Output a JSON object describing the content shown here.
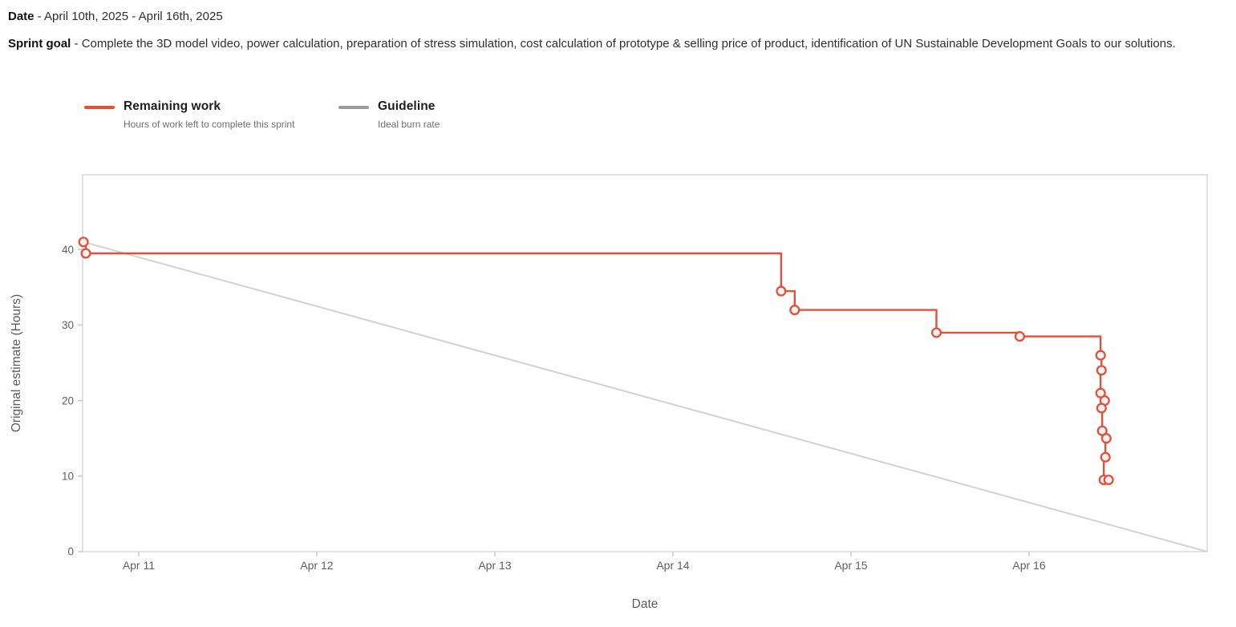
{
  "page": {
    "date_label": "Date",
    "date_sep": " - ",
    "date_value": "April 10th, 2025 - April 16th, 2025",
    "sprint_goal_label": "Sprint goal",
    "sprint_goal_sep": " - ",
    "sprint_goal_text": "Complete the 3D model video, power calculation, preparation of stress simulation, cost calculation of prototype & selling price of product, identification of UN Sustainable Development Goals to our solutions."
  },
  "legend": [
    {
      "name": "Remaining work",
      "description": "Hours of work left to complete this sprint",
      "color": "#e2503a"
    },
    {
      "name": "Guideline",
      "description": "Ideal burn rate",
      "color": "#9a9a9a"
    }
  ],
  "chart_data": {
    "type": "line",
    "xlabel": "Date",
    "ylabel": "Original estimate (Hours)",
    "x_unit": "days (1 = Apr 11, 6 = Apr 16)",
    "xlim": [
      0.685,
      7.0
    ],
    "ylim": [
      0,
      49.9
    ],
    "grid": false,
    "x_ticks": [
      {
        "pos": 1,
        "label": "Apr 11"
      },
      {
        "pos": 2,
        "label": "Apr 12"
      },
      {
        "pos": 3,
        "label": "Apr 13"
      },
      {
        "pos": 4,
        "label": "Apr 14"
      },
      {
        "pos": 5,
        "label": "Apr 15"
      },
      {
        "pos": 6,
        "label": "Apr 16"
      }
    ],
    "y_ticks": [
      0,
      10,
      20,
      30,
      40
    ],
    "series": [
      {
        "name": "Remaining work",
        "type": "step",
        "color": "#e2503a",
        "marker_fill": "#fdf2ef",
        "points": [
          [
            0.69,
            41
          ],
          [
            0.703,
            39.5
          ],
          [
            4.608,
            34.5
          ],
          [
            4.684,
            32
          ],
          [
            5.48,
            29
          ],
          [
            5.948,
            28.5
          ],
          [
            6.402,
            26
          ],
          [
            6.407,
            24
          ],
          [
            6.402,
            21
          ],
          [
            6.425,
            20
          ],
          [
            6.407,
            19
          ],
          [
            6.411,
            16
          ],
          [
            6.434,
            15
          ],
          [
            6.429,
            12.5
          ],
          [
            6.42,
            9.5
          ],
          [
            6.447,
            9.5
          ]
        ]
      },
      {
        "name": "Guideline",
        "type": "straight",
        "color": "#d2d2d2",
        "points": [
          [
            0.69,
            41
          ],
          [
            7.0,
            0
          ]
        ]
      }
    ],
    "colors": {
      "border": "#d8d8d8",
      "tick": "#c9c9c9",
      "tick_label": "#5f5f5f",
      "axis_label": "#5a5a5a"
    }
  }
}
